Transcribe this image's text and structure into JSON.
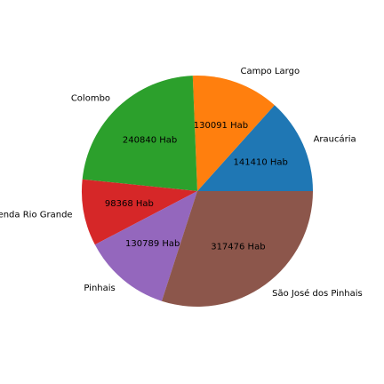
{
  "chart_data": {
    "type": "pie",
    "title": "",
    "start_angle_deg": 0,
    "direction": "counterclockwise",
    "value_suffix": " Hab",
    "legend": "none",
    "slices": [
      {
        "label": "Araucária",
        "value": 141410,
        "value_label": "141410 Hab",
        "color": "#1f77b4"
      },
      {
        "label": "Campo Largo",
        "value": 130091,
        "value_label": "130091 Hab",
        "color": "#ff7f0e"
      },
      {
        "label": "Colombo",
        "value": 240840,
        "value_label": "240840 Hab",
        "color": "#2ca02c"
      },
      {
        "label": "Fazenda Rio Grande",
        "value": 98368,
        "value_label": "98368 Hab",
        "color": "#d62728"
      },
      {
        "label": "Pinhais",
        "value": 130789,
        "value_label": "130789 Hab",
        "color": "#9467bd"
      },
      {
        "label": "São José dos Pinhais",
        "value": 317476,
        "value_label": "317476 Hab",
        "color": "#8c564b"
      }
    ]
  }
}
